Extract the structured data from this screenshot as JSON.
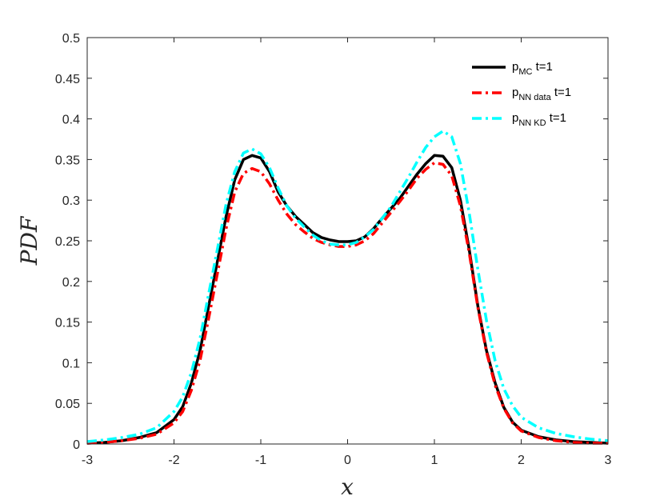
{
  "chart_data": {
    "type": "line",
    "title": "",
    "xlabel": "x",
    "ylabel": "PDF",
    "xlim": [
      -3,
      3
    ],
    "ylim": [
      0,
      0.5
    ],
    "xticks": [
      "-3",
      "-2",
      "-1",
      "0",
      "1",
      "2",
      "3"
    ],
    "yticks": [
      "0",
      "0.05",
      "0.1",
      "0.15",
      "0.2",
      "0.25",
      "0.3",
      "0.35",
      "0.4",
      "0.45",
      "0.5"
    ],
    "grid": false,
    "legend_position": "top-right",
    "series": [
      {
        "name": "p_MC t=1",
        "legend": {
          "main": "p",
          "sub": "MC",
          "suffix": " t=1"
        },
        "color": "#000000",
        "style": "solid",
        "x": [
          -3.0,
          -2.8,
          -2.6,
          -2.4,
          -2.2,
          -2.0,
          -1.9,
          -1.8,
          -1.7,
          -1.6,
          -1.5,
          -1.4,
          -1.3,
          -1.2,
          -1.1,
          -1.0,
          -0.9,
          -0.8,
          -0.7,
          -0.6,
          -0.5,
          -0.4,
          -0.3,
          -0.2,
          -0.1,
          0.0,
          0.1,
          0.2,
          0.3,
          0.4,
          0.5,
          0.6,
          0.7,
          0.8,
          0.9,
          1.0,
          1.1,
          1.2,
          1.3,
          1.4,
          1.5,
          1.6,
          1.7,
          1.8,
          1.9,
          2.0,
          2.2,
          2.4,
          2.6,
          2.8,
          3.0
        ],
        "y": [
          0.001,
          0.002,
          0.004,
          0.008,
          0.014,
          0.03,
          0.046,
          0.075,
          0.115,
          0.17,
          0.225,
          0.28,
          0.325,
          0.35,
          0.355,
          0.352,
          0.335,
          0.31,
          0.293,
          0.28,
          0.27,
          0.26,
          0.254,
          0.251,
          0.249,
          0.249,
          0.25,
          0.255,
          0.265,
          0.278,
          0.29,
          0.302,
          0.317,
          0.332,
          0.345,
          0.355,
          0.354,
          0.34,
          0.3,
          0.24,
          0.17,
          0.115,
          0.075,
          0.045,
          0.027,
          0.017,
          0.009,
          0.005,
          0.003,
          0.002,
          0.001
        ]
      },
      {
        "name": "p_NN data t=1",
        "legend": {
          "main": "p",
          "sub": "NN data",
          "suffix": " t=1"
        },
        "color": "#ff0000",
        "style": "dashdot",
        "x": [
          -3.0,
          -2.8,
          -2.6,
          -2.4,
          -2.2,
          -2.0,
          -1.9,
          -1.8,
          -1.7,
          -1.6,
          -1.5,
          -1.4,
          -1.3,
          -1.2,
          -1.1,
          -1.0,
          -0.9,
          -0.8,
          -0.7,
          -0.6,
          -0.5,
          -0.4,
          -0.3,
          -0.2,
          -0.1,
          0.0,
          0.1,
          0.2,
          0.3,
          0.4,
          0.5,
          0.6,
          0.7,
          0.8,
          0.9,
          1.0,
          1.1,
          1.2,
          1.3,
          1.4,
          1.5,
          1.6,
          1.7,
          1.8,
          1.9,
          2.0,
          2.2,
          2.4,
          2.6,
          2.8,
          3.0
        ],
        "y": [
          0.001,
          0.002,
          0.004,
          0.007,
          0.012,
          0.026,
          0.04,
          0.066,
          0.103,
          0.155,
          0.21,
          0.265,
          0.31,
          0.333,
          0.339,
          0.335,
          0.32,
          0.3,
          0.283,
          0.27,
          0.261,
          0.253,
          0.248,
          0.245,
          0.243,
          0.243,
          0.245,
          0.25,
          0.259,
          0.272,
          0.285,
          0.298,
          0.312,
          0.327,
          0.338,
          0.346,
          0.344,
          0.33,
          0.293,
          0.236,
          0.168,
          0.113,
          0.072,
          0.044,
          0.026,
          0.016,
          0.008,
          0.004,
          0.002,
          0.001,
          0.001
        ]
      },
      {
        "name": "p_NN KD t=1",
        "legend": {
          "main": "p",
          "sub": "NN KD",
          "suffix": " t=1"
        },
        "color": "#00ffff",
        "style": "dashdot",
        "x": [
          -3.0,
          -2.8,
          -2.6,
          -2.4,
          -2.2,
          -2.0,
          -1.9,
          -1.8,
          -1.7,
          -1.6,
          -1.5,
          -1.4,
          -1.3,
          -1.2,
          -1.1,
          -1.0,
          -0.9,
          -0.8,
          -0.7,
          -0.6,
          -0.5,
          -0.4,
          -0.3,
          -0.2,
          -0.1,
          0.0,
          0.1,
          0.2,
          0.3,
          0.4,
          0.5,
          0.6,
          0.7,
          0.8,
          0.9,
          1.0,
          1.1,
          1.2,
          1.3,
          1.4,
          1.5,
          1.6,
          1.7,
          1.8,
          1.9,
          2.0,
          2.2,
          2.4,
          2.6,
          2.8,
          3.0
        ],
        "y": [
          0.003,
          0.005,
          0.008,
          0.012,
          0.02,
          0.04,
          0.058,
          0.088,
          0.13,
          0.185,
          0.24,
          0.295,
          0.335,
          0.358,
          0.363,
          0.357,
          0.34,
          0.315,
          0.293,
          0.278,
          0.267,
          0.257,
          0.25,
          0.246,
          0.245,
          0.245,
          0.248,
          0.255,
          0.264,
          0.278,
          0.292,
          0.31,
          0.328,
          0.347,
          0.365,
          0.378,
          0.385,
          0.378,
          0.345,
          0.285,
          0.215,
          0.152,
          0.102,
          0.068,
          0.047,
          0.033,
          0.02,
          0.013,
          0.009,
          0.006,
          0.004
        ]
      }
    ]
  }
}
